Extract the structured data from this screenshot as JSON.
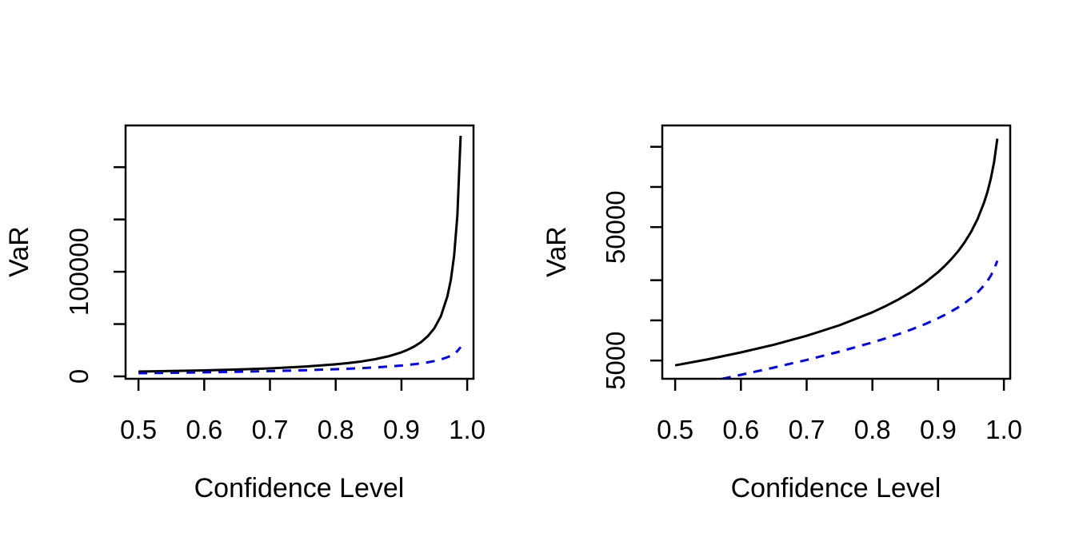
{
  "figure": {
    "background": "#ffffff",
    "text_color": "#000000"
  },
  "chart_data": [
    {
      "type": "line",
      "title": "",
      "xlabel": "Confidence Level",
      "ylabel": "VaR",
      "yscale": "linear",
      "xlim": [
        0.4804,
        1.0096
      ],
      "ylim": [
        -2300,
        239850
      ],
      "xticks": [
        0.5,
        0.6,
        0.7,
        0.8,
        0.9,
        1.0
      ],
      "xtick_labels": [
        "0.5",
        "0.6",
        "0.7",
        "0.8",
        "0.9",
        "1.0"
      ],
      "yticks": [
        0,
        50000,
        100000,
        150000,
        200000
      ],
      "ytick_labels": [
        "0",
        "",
        "100000",
        "",
        ""
      ],
      "grid": false,
      "legend": "none",
      "x": [
        0.5,
        0.55,
        0.6,
        0.65,
        0.7,
        0.75,
        0.8,
        0.82,
        0.84,
        0.86,
        0.88,
        0.9,
        0.91,
        0.92,
        0.93,
        0.94,
        0.95,
        0.96,
        0.97,
        0.975,
        0.98,
        0.985,
        0.99
      ],
      "series": [
        {
          "name": "black-solid-var",
          "color": "#000000",
          "style": "solid",
          "values": [
            4600,
            5111,
            5750,
            6571,
            7667,
            9200,
            11500,
            12778,
            14375,
            16429,
            19167,
            23000,
            25556,
            28750,
            32857,
            38333,
            46000,
            57500,
            76667,
            92000,
            115000,
            153333,
            230000
          ]
        },
        {
          "name": "blue-dashed-var",
          "color": "#0000ff",
          "style": "dashed",
          "values": [
            3072,
            3462,
            3908,
            4430,
            5056,
            5831,
            6833,
            7330,
            7902,
            8573,
            9379,
            10380,
            10981,
            11672,
            12482,
            13456,
            14658,
            16209,
            18341,
            19773,
            21615,
            24143,
            28003
          ]
        }
      ]
    },
    {
      "type": "line",
      "title": "",
      "xlabel": "Confidence Level",
      "ylabel": "VaR",
      "yscale": "log10",
      "xlim": [
        0.4804,
        1.0096
      ],
      "ylim": [
        3650,
        289000
      ],
      "xticks": [
        0.5,
        0.6,
        0.7,
        0.8,
        0.9,
        1.0
      ],
      "xtick_labels": [
        "0.5",
        "0.6",
        "0.7",
        "0.8",
        "0.9",
        "1.0"
      ],
      "yticks": [
        5000,
        10000,
        20000,
        50000,
        100000,
        200000
      ],
      "ytick_labels": [
        "5000",
        "",
        "",
        "50000",
        "",
        ""
      ],
      "grid": false,
      "legend": "none",
      "x": [
        0.5,
        0.55,
        0.6,
        0.65,
        0.7,
        0.75,
        0.8,
        0.82,
        0.84,
        0.86,
        0.88,
        0.9,
        0.91,
        0.92,
        0.93,
        0.94,
        0.95,
        0.96,
        0.97,
        0.975,
        0.98,
        0.985,
        0.99
      ],
      "series": [
        {
          "name": "black-solid-var",
          "color": "#000000",
          "style": "solid",
          "values": [
            4600,
            5111,
            5750,
            6571,
            7667,
            9200,
            11500,
            12778,
            14375,
            16429,
            19167,
            23000,
            25556,
            28750,
            32857,
            38333,
            46000,
            57500,
            76667,
            92000,
            115000,
            153333,
            230000
          ]
        },
        {
          "name": "blue-dashed-var",
          "color": "#0000ff",
          "style": "dashed",
          "values": [
            3072,
            3462,
            3908,
            4430,
            5056,
            5831,
            6833,
            7330,
            7902,
            8573,
            9379,
            10380,
            10981,
            11672,
            12482,
            13456,
            14658,
            16209,
            18341,
            19773,
            21615,
            24143,
            28003
          ]
        }
      ]
    }
  ]
}
